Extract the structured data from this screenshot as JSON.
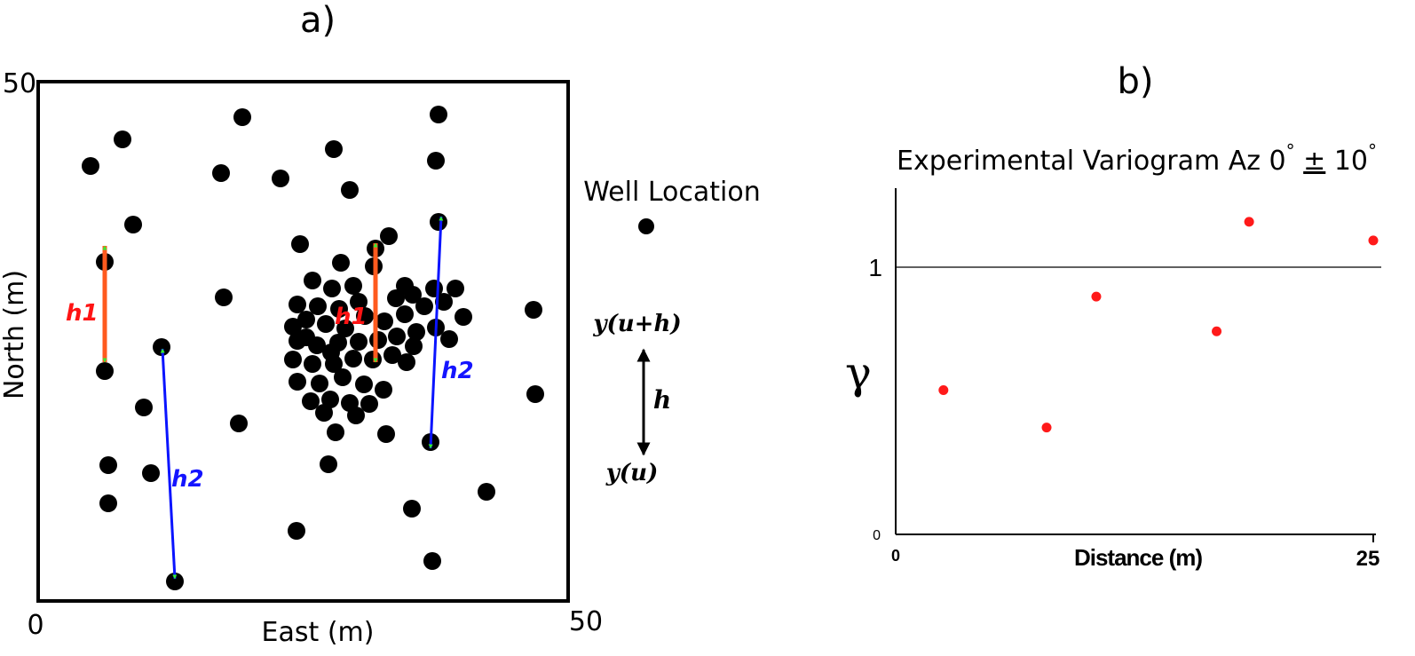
{
  "panel_a": {
    "label": "a)",
    "x_axis": {
      "label": "East (m)",
      "min": "0",
      "max": "50"
    },
    "y_axis": {
      "label": "North (m)",
      "max": "50"
    },
    "legend": {
      "label": "Well Location"
    },
    "lag_diagram": {
      "upper": "y(u+h)",
      "lower": "y(u)",
      "vector": "h"
    },
    "lag_labels": {
      "h1": "h1",
      "h2": "h2"
    },
    "colors": {
      "h1_arrow": "#ff5a1e",
      "h2_arrow": "#0a14ff",
      "arrow_head": "#33ee33",
      "h1_text": "#ff1414",
      "h2_text": "#1414ff",
      "well": "#000000"
    }
  },
  "panel_b": {
    "label": "b)",
    "title": "Experimental Variogram Az 0° ± 10°",
    "title_parts": [
      "Experimental Variogram Az 0",
      "°",
      " ",
      "±",
      " 10",
      "°"
    ],
    "chart_data": {
      "type": "scatter",
      "title": "Experimental Variogram Az 0° ± 10°",
      "xlabel": "Distance (m)",
      "ylabel": "γ",
      "xlim": [
        0,
        25
      ],
      "ylim": [
        0,
        1.3
      ],
      "xticks": [
        "0",
        "25"
      ],
      "yticks": [
        "0",
        "1"
      ],
      "sill": 1,
      "marker_color": "#ff1a1a",
      "points": [
        {
          "x": 2.5,
          "y": 0.54
        },
        {
          "x": 7.9,
          "y": 0.4
        },
        {
          "x": 10.5,
          "y": 0.89
        },
        {
          "x": 16.8,
          "y": 0.76
        },
        {
          "x": 18.5,
          "y": 1.17
        },
        {
          "x": 25.0,
          "y": 1.1
        }
      ]
    }
  }
}
